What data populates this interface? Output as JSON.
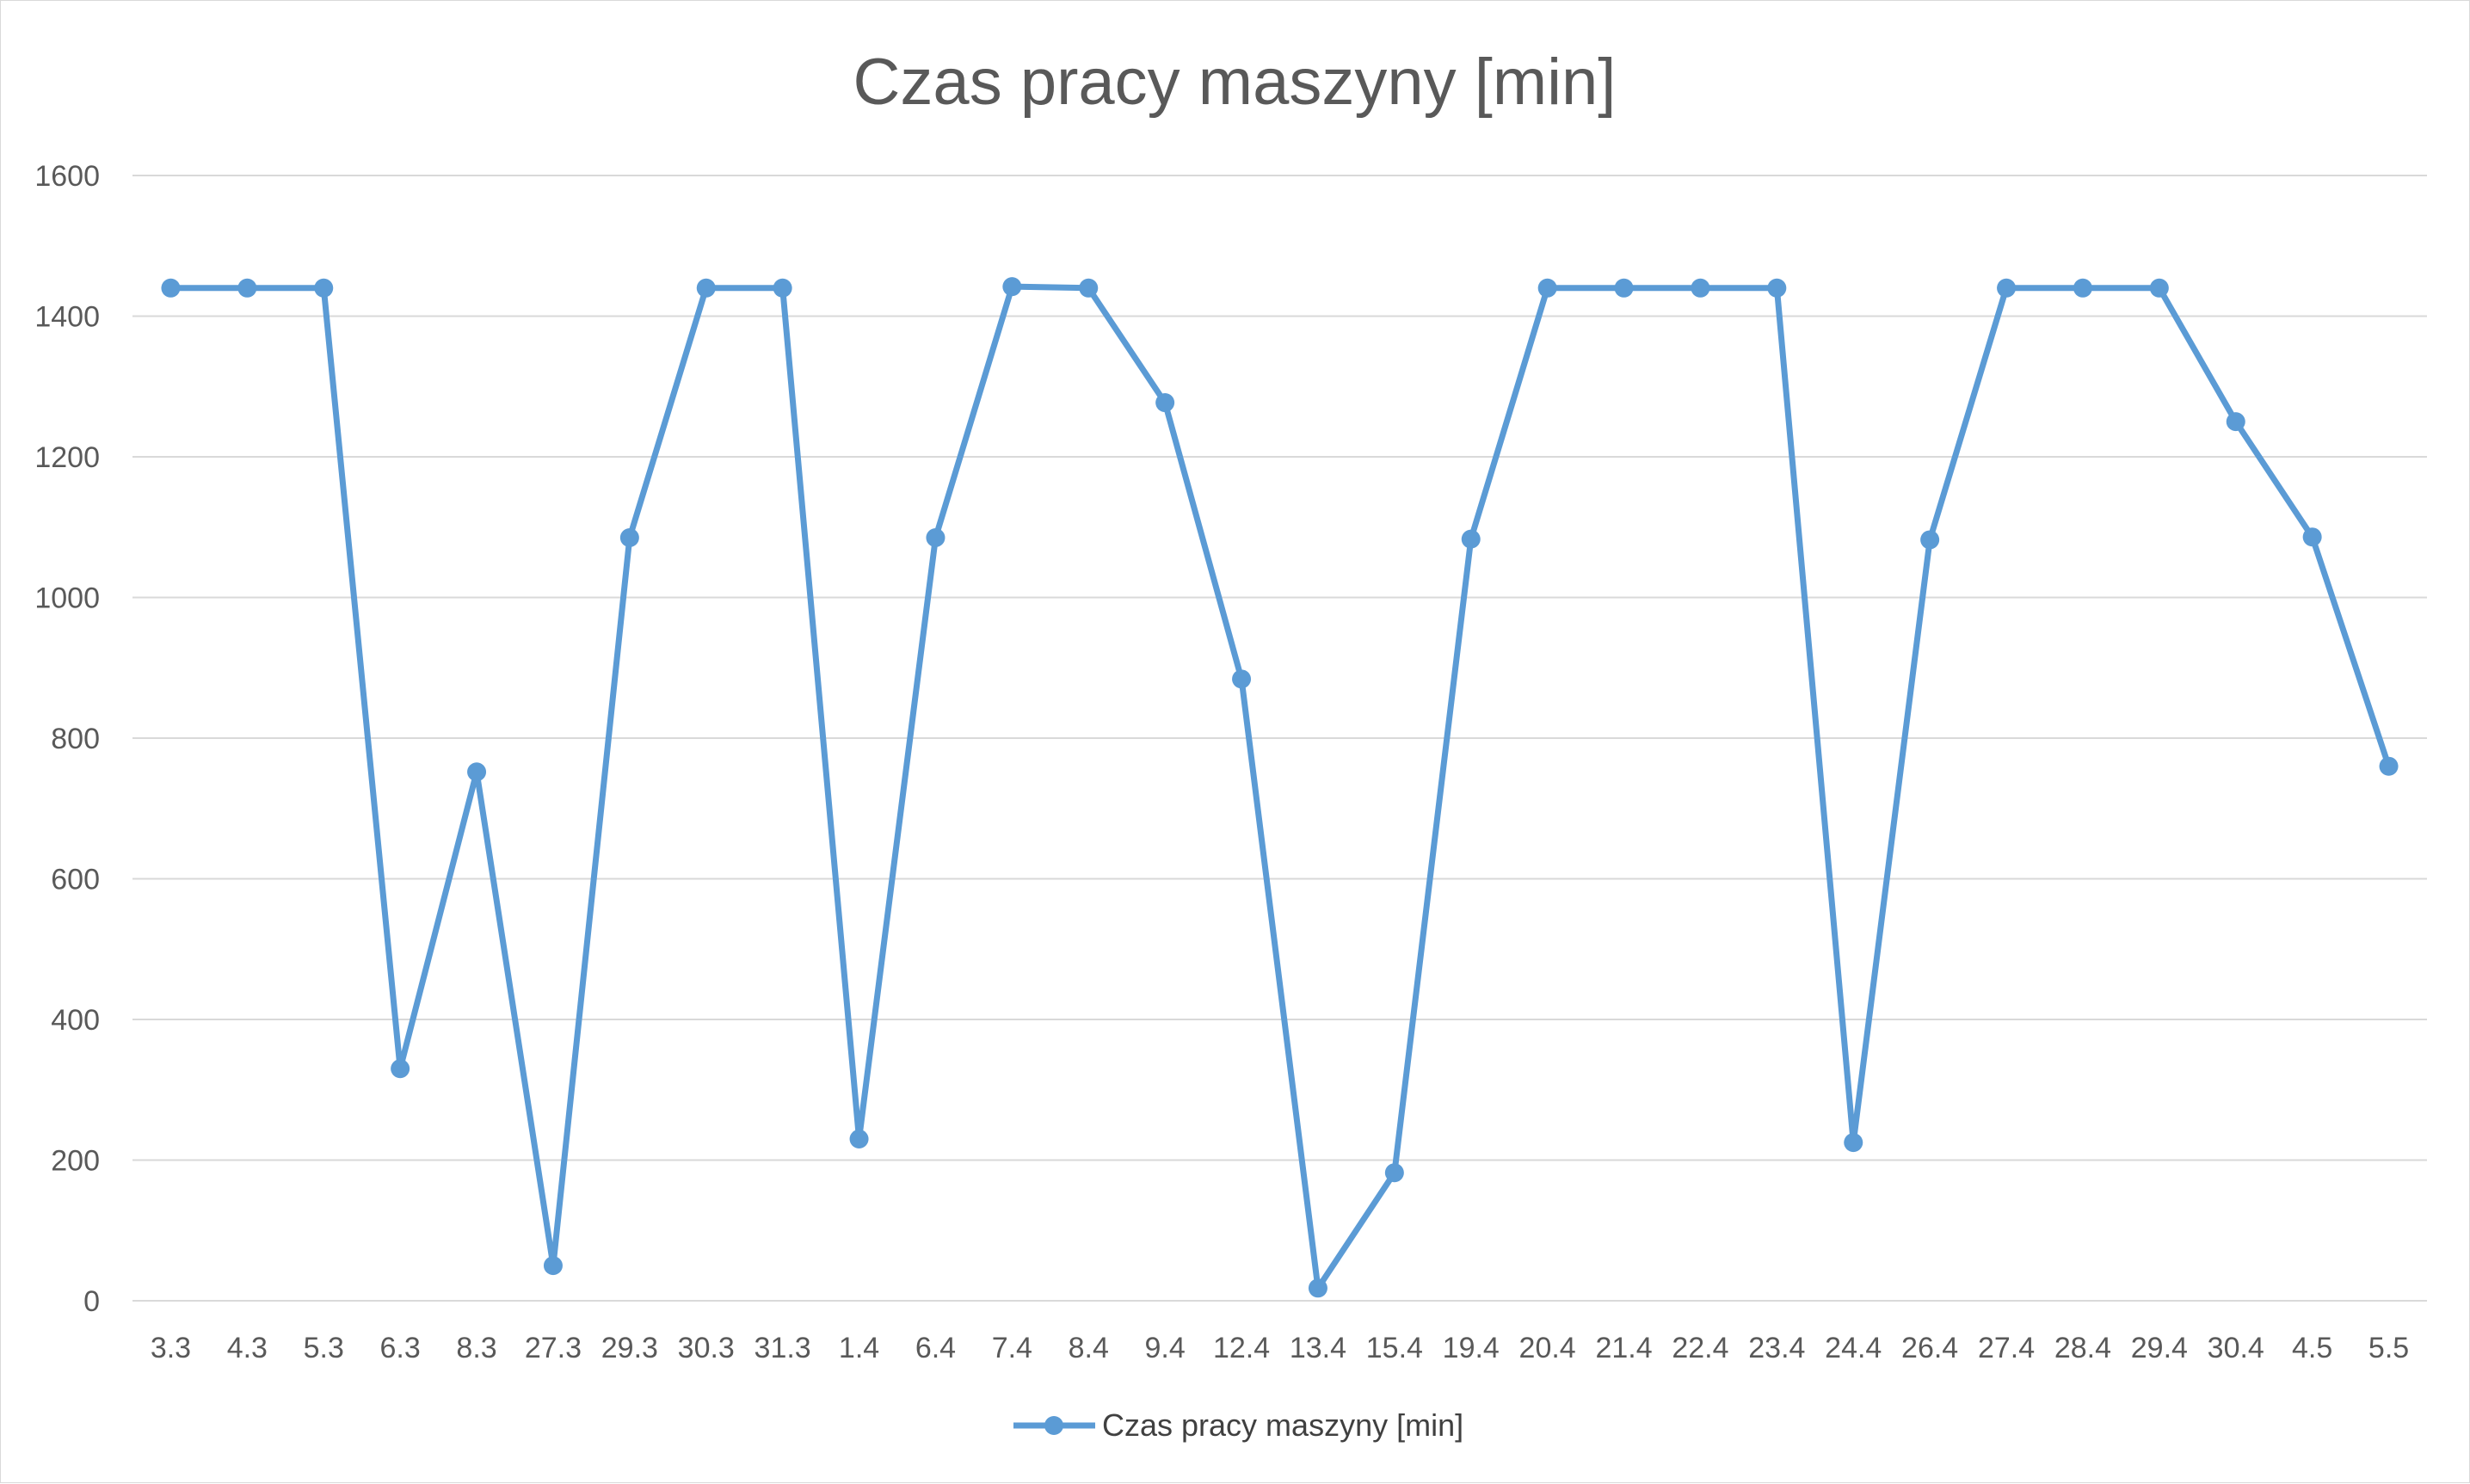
{
  "chart_data": {
    "type": "line",
    "title": "Czas pracy maszyny [min]",
    "xlabel": "",
    "ylabel": "",
    "categories": [
      "3.3",
      "4.3",
      "5.3",
      "6.3",
      "8.3",
      "27.3",
      "29.3",
      "30.3",
      "31.3",
      "1.4",
      "6.4",
      "7.4",
      "8.4",
      "9.4",
      "12.4",
      "13.4",
      "15.4",
      "19.4",
      "20.4",
      "21.4",
      "22.4",
      "23.4",
      "24.4",
      "26.4",
      "27.4",
      "28.4",
      "29.4",
      "30.4",
      "4.5",
      "5.5"
    ],
    "series": [
      {
        "name": "Czas pracy maszyny [min]",
        "color": "#5b9bd5",
        "values": [
          1440,
          1440,
          1440,
          330,
          752,
          50,
          1085,
          1440,
          1440,
          230,
          1085,
          1442,
          1440,
          1277,
          884,
          18,
          182,
          1083,
          1440,
          1440,
          1440,
          1440,
          225,
          1082,
          1440,
          1440,
          1440,
          1250,
          1086,
          760
        ]
      }
    ],
    "ylim": [
      0,
      1600
    ],
    "yticks": [
      0,
      200,
      400,
      600,
      800,
      1000,
      1200,
      1400,
      1600
    ],
    "grid": true,
    "legend_position": "bottom"
  }
}
